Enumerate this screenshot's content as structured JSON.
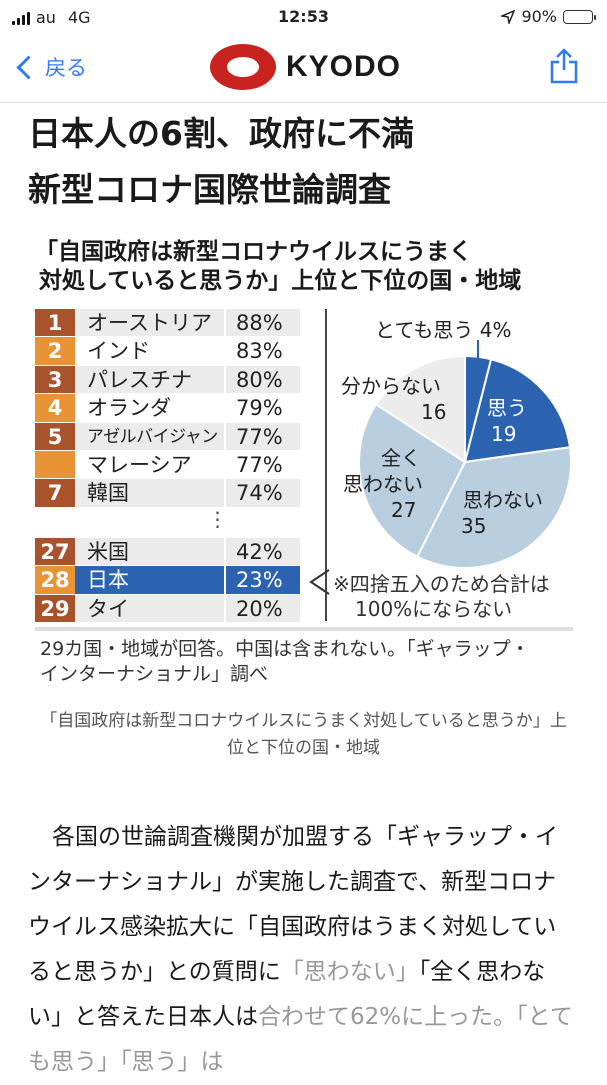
{
  "status_bar": {
    "carrier": "au",
    "network": "4G",
    "time": "12:53",
    "battery": "90%",
    "battery_level": 0.9
  },
  "nav": {
    "back_label": "戻る",
    "logo_text": "KYODO",
    "brand_color": "#c8231f",
    "accent": "#2f7cf6"
  },
  "article": {
    "headline_line1": "日本人の6割、政府に不満",
    "headline_line2": "新型コロナ国際世論調査",
    "caption": "「自国政府は新型コロナウイルスにうまく対処していると思うか」上位と下位の国・地域",
    "body_main": "各国の世論調査機関が加盟する「ギャラップ・インターナショナル」が実施した調査で、新型コロナウイルス感染拡大に「自国政府はうまく対処していると思うか」との質問に",
    "body_quote1": "「思わない」",
    "body_mid": "「全く思わない」と答えた日本人は",
    "body_fade": "合わせて62%に上った。「とても思う」「思う」は"
  },
  "figure": {
    "title_line1": "「自国政府は新型コロナウイルスにうまく",
    "title_line2": "対処していると思うか」上位と下位の国・地域",
    "note_line1": "※四捨五入のため合計は",
    "note_line2": "100%にならない",
    "source_line1": "29カ国・地域が回答。中国は含まれない。「ギャラップ・",
    "source_line2": "インターナショナル」調べ",
    "ellipsis": "⋮"
  },
  "chart_data": [
    {
      "type": "table",
      "columns": [
        "rank",
        "country",
        "percent"
      ],
      "rows": [
        [
          "1",
          "オーストリア",
          "88%"
        ],
        [
          "2",
          "インド",
          "83%"
        ],
        [
          "3",
          "パレスチナ",
          "80%"
        ],
        [
          "4",
          "オランダ",
          "79%"
        ],
        [
          "5",
          "アゼルバイジャン",
          "77%"
        ],
        [
          "",
          "マレーシア",
          "77%"
        ],
        [
          "7",
          "韓国",
          "74%"
        ],
        [
          "27",
          "米国",
          "42%"
        ],
        [
          "28",
          "日本",
          "23%"
        ],
        [
          "29",
          "タイ",
          "20%"
        ]
      ]
    },
    {
      "type": "pie",
      "slices": [
        {
          "label": "とても思う",
          "value": 4,
          "color": "#2b63b0"
        },
        {
          "label": "思う",
          "value": 19,
          "color": "#2b63b0"
        },
        {
          "label": "思わない",
          "value": 35,
          "color": "#b9cfdf"
        },
        {
          "label": "全く思わない",
          "value": 27,
          "color": "#b9cfdf"
        },
        {
          "label": "分からない",
          "value": 16,
          "color": "#ececec"
        }
      ],
      "label_texts": {
        "very": "とても思う 4%",
        "yes_name": "思う",
        "yes_val": "19",
        "no_name": "思わない",
        "no_val": "35",
        "never_name1": "全く",
        "never_name2": "思わない",
        "never_val": "27",
        "dk_name": "分からない",
        "dk_val": "16"
      }
    }
  ]
}
